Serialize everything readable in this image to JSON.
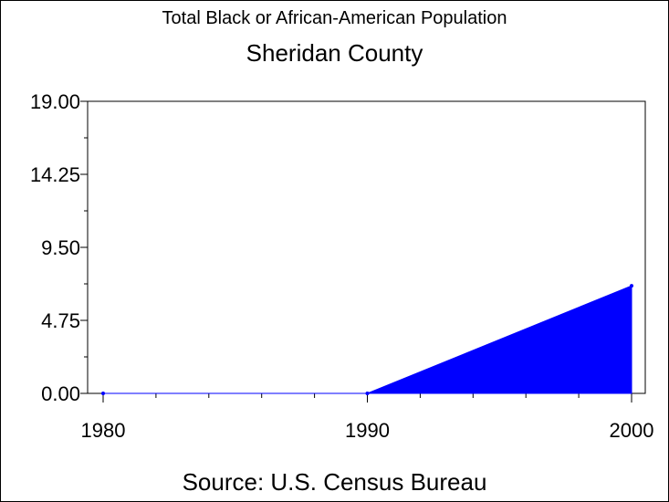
{
  "chart_data": {
    "type": "area",
    "title": "Total Black or African-American Population",
    "subtitle": "Sheridan County",
    "source": "Source: U.S. Census Bureau",
    "x": [
      1980,
      1990,
      2000
    ],
    "values": [
      0,
      0,
      7
    ],
    "xlim": [
      1980,
      2000
    ],
    "ylim": [
      0,
      19
    ],
    "y_ticks": [
      "0.00",
      "4.75",
      "9.50",
      "14.25",
      "19.00"
    ],
    "x_ticks": [
      "1980",
      "1990",
      "2000"
    ],
    "grid": false,
    "fill_color": "#0000ff"
  }
}
